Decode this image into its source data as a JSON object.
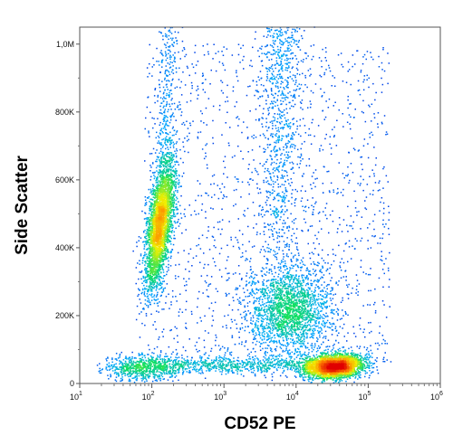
{
  "chart_data": {
    "type": "scatter",
    "subtype": "flow-cytometry-density-dot-plot",
    "title": "",
    "xlabel": "CD52 PE",
    "ylabel": "Side Scatter",
    "x_scale": "log",
    "xlim": [
      10,
      1000000
    ],
    "ylim": [
      0,
      1050000
    ],
    "x_ticks": [
      {
        "value": 10,
        "base": "10",
        "exp": "1"
      },
      {
        "value": 100,
        "base": "10",
        "exp": "2"
      },
      {
        "value": 1000,
        "base": "10",
        "exp": "3"
      },
      {
        "value": 10000,
        "base": "10",
        "exp": "4"
      },
      {
        "value": 100000,
        "base": "10",
        "exp": "5"
      },
      {
        "value": 1000000,
        "base": "10",
        "exp": "6"
      }
    ],
    "y_ticks": [
      {
        "value": 0,
        "label": "0"
      },
      {
        "value": 200000,
        "label": "200K"
      },
      {
        "value": 400000,
        "label": "400K"
      },
      {
        "value": 600000,
        "label": "600K"
      },
      {
        "value": 800000,
        "label": "800K"
      },
      {
        "value": 1000000,
        "label": "1,0M"
      }
    ],
    "grid": false,
    "legend": "none",
    "color_scale": [
      "#0018e0",
      "#00a8ff",
      "#10e060",
      "#f0f000",
      "#ff8000",
      "#e00000"
    ],
    "populations": [
      {
        "x_center": 130,
        "x_log_spread": 0.09,
        "y_center": 470000,
        "y_spread": 95000,
        "orientation": "tilted",
        "density": "high"
      },
      {
        "x_center": 35000,
        "x_log_spread": 0.2,
        "y_center": 50000,
        "y_spread": 18000,
        "density": "high"
      },
      {
        "x_center": 8000,
        "x_log_spread": 0.3,
        "y_center": 215000,
        "y_spread": 65000,
        "density": "medium"
      },
      {
        "x_center": 70,
        "x_log_spread": 0.25,
        "y_center": 45000,
        "y_spread": 20000,
        "density": "low"
      },
      {
        "x_center": 6000,
        "x_log_spread": 0.15,
        "y_center": 780000,
        "y_spread": 200000,
        "density": "low"
      }
    ]
  }
}
